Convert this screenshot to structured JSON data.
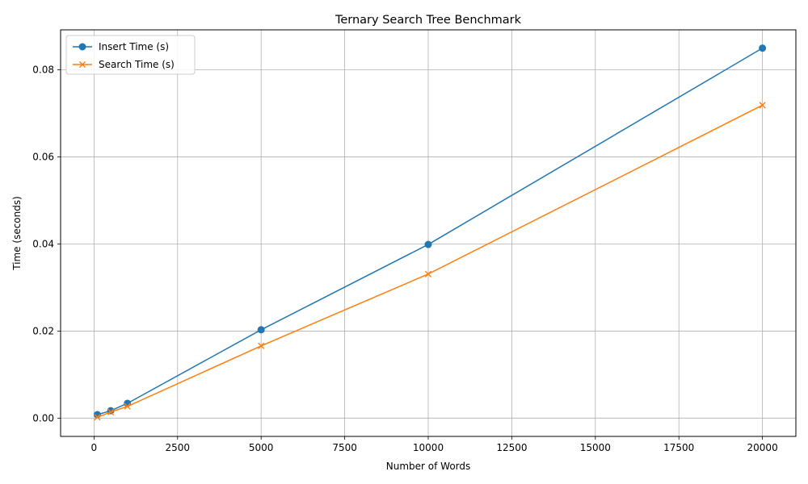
{
  "chart_data": {
    "type": "line",
    "title": "Ternary Search Tree Benchmark",
    "xlabel": "Number of Words",
    "ylabel": "Time (seconds)",
    "xlim": [
      -1000,
      21000
    ],
    "ylim": [
      -0.0042,
      0.0892
    ],
    "xticks": [
      0,
      2500,
      5000,
      7500,
      10000,
      12500,
      15000,
      17500,
      20000
    ],
    "xtick_labels": [
      "0",
      "2500",
      "5000",
      "7500",
      "10000",
      "12500",
      "15000",
      "17500",
      "20000"
    ],
    "yticks": [
      0.0,
      0.02,
      0.04,
      0.06,
      0.08
    ],
    "ytick_labels": [
      "0.00",
      "0.02",
      "0.04",
      "0.06",
      "0.08"
    ],
    "grid": true,
    "legend_position": "top-left",
    "x": [
      100,
      500,
      1000,
      5000,
      10000,
      20000
    ],
    "series": [
      {
        "name": "Insert Time (s)",
        "values": [
          0.0008,
          0.0017,
          0.0034,
          0.0203,
          0.0399,
          0.085
        ],
        "color": "#1f77b4",
        "marker": "circle"
      },
      {
        "name": "Search Time (s)",
        "values": [
          0.0002,
          0.0014,
          0.0027,
          0.0166,
          0.0331,
          0.0719
        ],
        "color": "#ff7f0e",
        "marker": "x"
      }
    ]
  }
}
